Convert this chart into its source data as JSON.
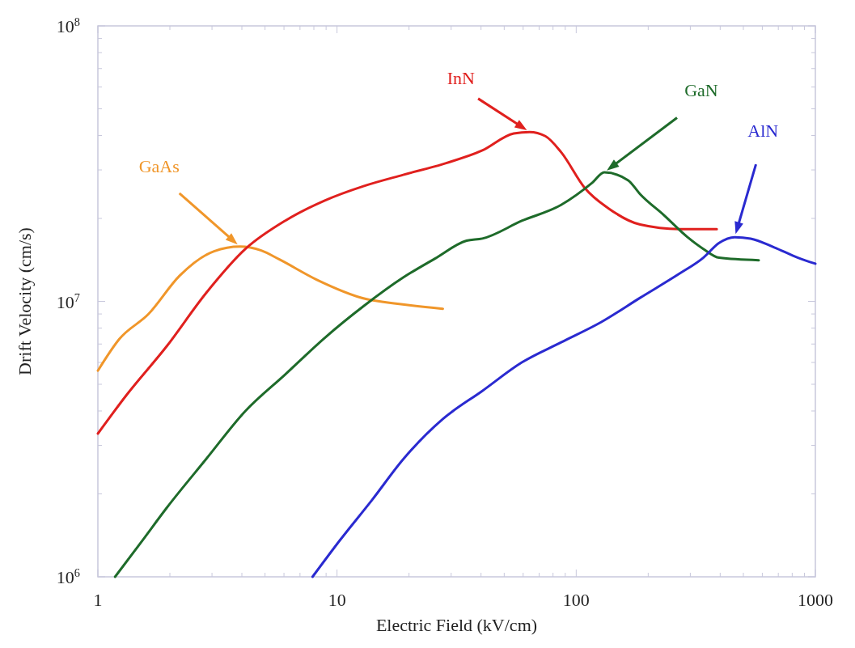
{
  "chart_data": {
    "type": "line",
    "xlabel": "Electric Field (kV/cm)",
    "ylabel": "Drift Velocity (cm/s)",
    "log": "xy",
    "grid": false,
    "marker": "none",
    "line_style": "solid",
    "xlim": [
      1,
      1000
    ],
    "ylim": [
      1000000,
      100000000
    ],
    "xticks": [
      1,
      {
        "value": 2,
        "label": null
      },
      {
        "value": 3,
        "label": null
      },
      {
        "value": 4,
        "label": null
      },
      {
        "value": 5,
        "label": null
      },
      {
        "value": 6,
        "label": null
      },
      {
        "value": 7,
        "label": null
      },
      {
        "value": 8,
        "label": null
      },
      {
        "value": 9,
        "label": null
      },
      10,
      {
        "value": 20,
        "label": null
      },
      {
        "value": 30,
        "label": null
      },
      {
        "value": 40,
        "label": null
      },
      {
        "value": 50,
        "label": null
      },
      {
        "value": 60,
        "label": null
      },
      {
        "value": 70,
        "label": null
      },
      {
        "value": 80,
        "label": null
      },
      {
        "value": 90,
        "label": null
      },
      100,
      {
        "value": 200,
        "label": null
      },
      {
        "value": 300,
        "label": null
      },
      {
        "value": 400,
        "label": null
      },
      {
        "value": 500,
        "label": null
      },
      {
        "value": 600,
        "label": null
      },
      {
        "value": 700,
        "label": null
      },
      {
        "value": 800,
        "label": null
      },
      {
        "value": 900,
        "label": null
      },
      1000
    ],
    "yticks": [
      {
        "value": 1000000,
        "label": "10$^{6}$"
      },
      {
        "value": 2000000,
        "label": null
      },
      {
        "value": 3000000,
        "label": null
      },
      {
        "value": 4000000,
        "label": null
      },
      {
        "value": 5000000,
        "label": null
      },
      {
        "value": 6000000,
        "label": null
      },
      {
        "value": 7000000,
        "label": null
      },
      {
        "value": 8000000,
        "label": null
      },
      {
        "value": 9000000,
        "label": null
      },
      {
        "value": 10000000,
        "label": "10$^{7}$"
      },
      {
        "value": 20000000,
        "label": null
      },
      {
        "value": 30000000,
        "label": null
      },
      {
        "value": 40000000,
        "label": null
      },
      {
        "value": 50000000,
        "label": null
      },
      {
        "value": 60000000,
        "label": null
      },
      {
        "value": 70000000,
        "label": null
      },
      {
        "value": 80000000,
        "label": null
      },
      {
        "value": 90000000,
        "label": null
      },
      {
        "value": 100000000,
        "label": "10$^{8}$"
      }
    ],
    "series": [
      {
        "name": "GaAs",
        "color": "#f0962a",
        "x": [
          1,
          1.23,
          1.63,
          2.2,
          3.06,
          3.93,
          4.82,
          5.74,
          8.2,
          13.2,
          17.9,
          27.7
        ],
        "values": [
          5600000,
          7300000,
          9000000,
          12400000,
          15200000,
          15800000,
          15300000,
          14200000,
          12000000,
          10200000,
          9800000,
          9400000
        ]
      },
      {
        "name": "InN",
        "color": "#e0201e",
        "x": [
          1,
          1.32,
          1.94,
          2.83,
          4.14,
          6.06,
          8.85,
          12.9,
          18.9,
          27.7,
          40.5,
          54.8,
          63.9,
          74.3,
          86.5,
          109,
          137,
          185,
          270,
          387
        ],
        "values": [
          3310000,
          4580000,
          6870000,
          10700000,
          15500000,
          19600000,
          23200000,
          26200000,
          28800000,
          31500000,
          35300000,
          40700000,
          41200000,
          39800000,
          34800000,
          25700000,
          21700000,
          19000000,
          18300000,
          18300000
        ]
      },
      {
        "name": "GaN",
        "color": "#1e6b2a",
        "x": [
          1.18,
          1.54,
          1.94,
          2.83,
          4.14,
          6.06,
          8.85,
          12.9,
          18.9,
          25.7,
          34.8,
          40.5,
          59.2,
          86.5,
          117,
          131,
          165,
          185,
          232,
          292,
          340,
          396,
          580
        ],
        "values": [
          1000000,
          1360000,
          1780000,
          2670000,
          4000000,
          5420000,
          7350000,
          9600000,
          12200000,
          14300000,
          16600000,
          16900000,
          19600000,
          22400000,
          27000000,
          29400000,
          27500000,
          24500000,
          20600000,
          17100000,
          15500000,
          14400000,
          14100000
        ]
      },
      {
        "name": "AlN",
        "color": "#2a2ad0",
        "x": [
          7.9,
          10.3,
          14,
          18.9,
          27.7,
          40.5,
          59.2,
          86.5,
          127,
          185,
          270,
          340,
          396,
          460,
          536,
          673,
          846,
          1000
        ],
        "values": [
          1000000,
          1360000,
          1900000,
          2670000,
          3740000,
          4730000,
          6000000,
          7100000,
          8400000,
          10300000,
          12600000,
          14400000,
          16300000,
          17100000,
          16900000,
          15700000,
          14400000,
          13700000
        ]
      }
    ]
  }
}
